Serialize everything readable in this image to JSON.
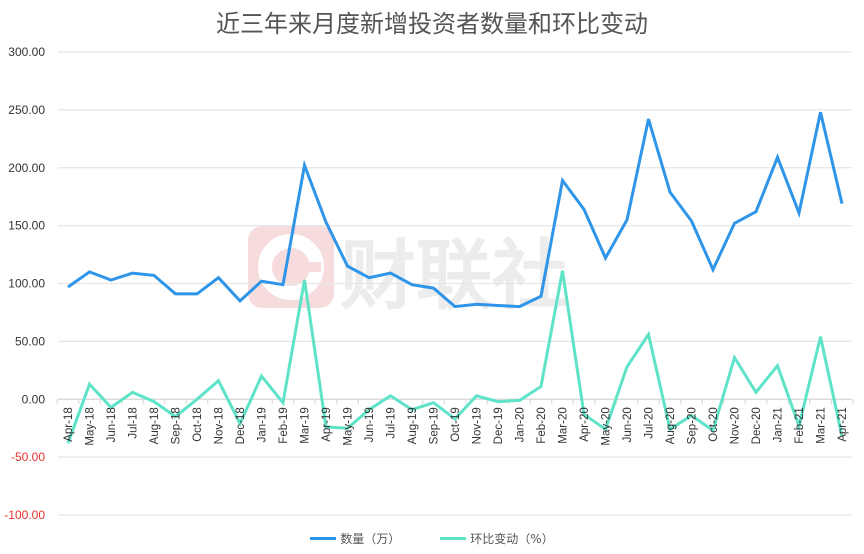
{
  "chart_data": {
    "type": "line",
    "title": "近三年来月度新增投资者数量和环比变动",
    "xlabel": "",
    "ylabel": "",
    "ylim": [
      -100,
      300
    ],
    "yticks": [
      "300.00",
      "250.00",
      "200.00",
      "150.00",
      "100.00",
      "50.00",
      "0.00",
      "-50.00",
      "-100.00"
    ],
    "ytick_values": [
      300,
      250,
      200,
      150,
      100,
      50,
      0,
      -50,
      -100
    ],
    "negative_tick_color": "#e8322e",
    "grid": true,
    "legend_position": "bottom",
    "categories": [
      "Apr-18",
      "May-18",
      "Jun-18",
      "Jul-18",
      "Aug-18",
      "Sep-18",
      "Oct-18",
      "Nov-18",
      "Dec-18",
      "Jan-19",
      "Feb-19",
      "Mar-19",
      "Apr-19",
      "May-19",
      "Jun-19",
      "Jul-19",
      "Aug-19",
      "Sep-19",
      "Oct-19",
      "Nov-19",
      "Dec-19",
      "Jan-20",
      "Feb-20",
      "Mar-20",
      "Apr-20",
      "May-20",
      "Jun-20",
      "Jul-20",
      "Aug-20",
      "Sep-20",
      "Oct-20",
      "Nov-20",
      "Dec-20",
      "Jan-21",
      "Feb-21",
      "Mar-21",
      "Apr-21"
    ],
    "series": [
      {
        "name": "数量（万）",
        "color": "#2f95e8",
        "values": [
          97,
          110,
          103,
          109,
          107,
          91,
          91,
          105,
          85,
          102,
          99,
          202,
          153,
          115,
          105,
          109,
          99,
          96,
          80,
          82,
          81,
          80,
          89,
          189,
          164,
          122,
          155,
          242,
          179,
          154,
          112,
          152,
          162,
          209,
          161,
          248,
          169
        ]
      },
      {
        "name": "环比变动（%）",
        "color": "#5ee3c8",
        "values": [
          -38,
          13,
          -7,
          6,
          -2,
          -15,
          0,
          16,
          -21,
          20,
          -3,
          103,
          -24,
          -25,
          -9,
          3,
          -9,
          -3,
          -17,
          3,
          -2,
          -1,
          11,
          111,
          -13,
          -26,
          28,
          56,
          -26,
          -14,
          -27,
          36,
          6,
          29,
          -23,
          54,
          -32
        ]
      }
    ]
  },
  "watermark": {
    "text": "财联社",
    "logo_color": "#f6dcdc",
    "text_color": "#ececec"
  },
  "legend": {
    "items": [
      {
        "label": "数量（万）",
        "color": "#2f95e8"
      },
      {
        "label": "环比变动（%）",
        "color": "#5ee3c8"
      }
    ]
  }
}
